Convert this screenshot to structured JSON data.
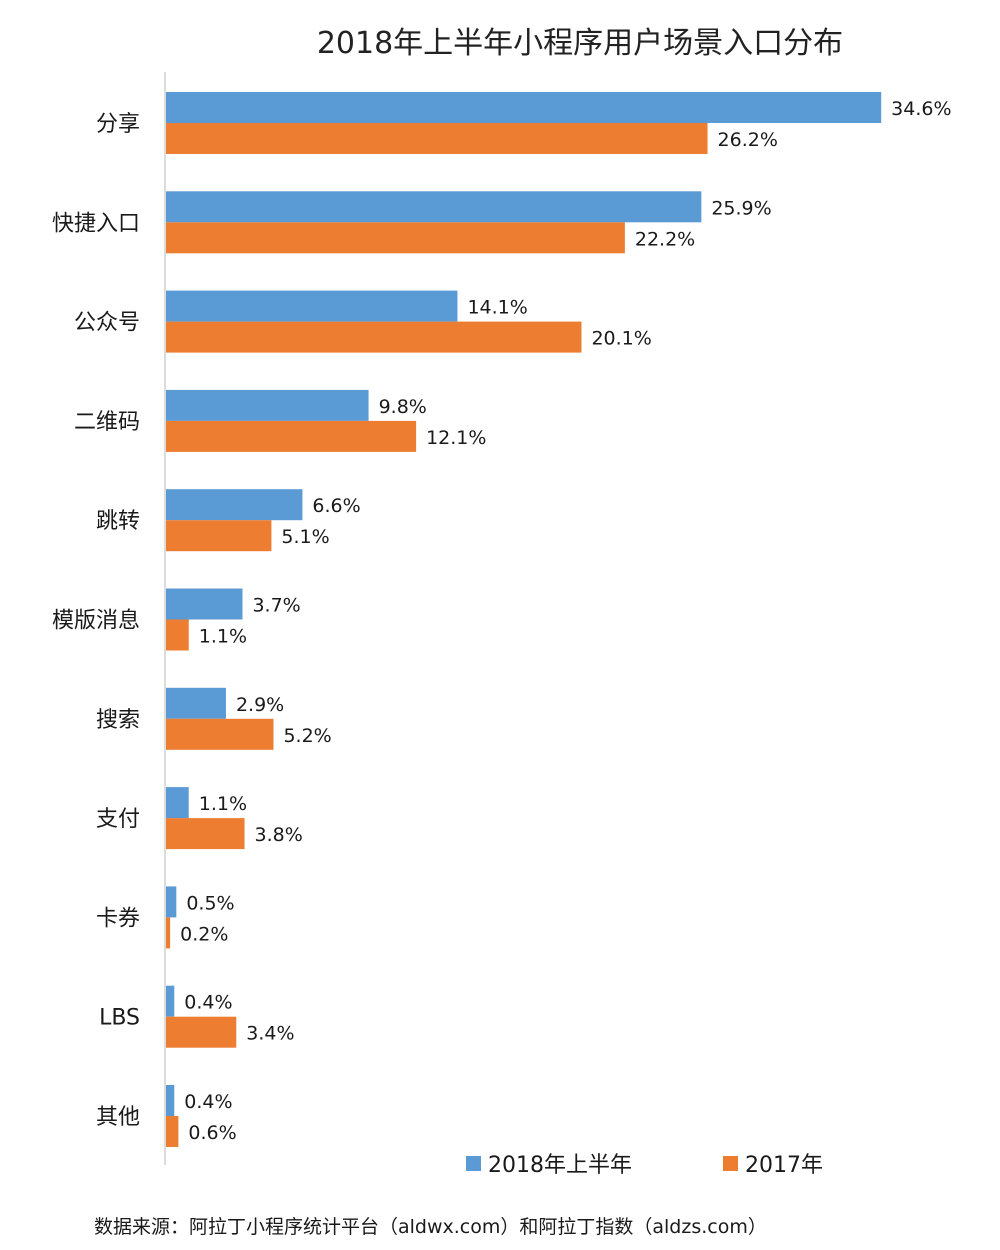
{
  "chart_data": {
    "type": "bar",
    "orientation": "horizontal",
    "title": "2018年上半年小程序用户场景入口分布",
    "categories": [
      "分享",
      "快捷入口",
      "公众号",
      "二维码",
      "跳转",
      "模版消息",
      "搜索",
      "支付",
      "卡券",
      "LBS",
      "其他"
    ],
    "series": [
      {
        "name": "2018年上半年",
        "color": "#5b9bd5",
        "values": [
          34.6,
          25.9,
          14.1,
          9.8,
          6.6,
          3.7,
          2.9,
          1.1,
          0.5,
          0.4,
          0.4
        ],
        "labels": [
          "34.6%",
          "25.9%",
          "14.1%",
          "9.8%",
          "6.6%",
          "3.7%",
          "2.9%",
          "1.1%",
          "0.5%",
          "0.4%",
          "0.4%"
        ]
      },
      {
        "name": "2017年",
        "color": "#ed7d31",
        "values": [
          26.2,
          22.2,
          20.1,
          12.1,
          5.1,
          1.1,
          5.2,
          3.8,
          0.2,
          3.4,
          0.6
        ],
        "labels": [
          "26.2%",
          "22.2%",
          "20.1%",
          "12.1%",
          "5.1%",
          "1.1%",
          "5.2%",
          "3.8%",
          "0.2%",
          "3.4%",
          "0.6%"
        ]
      }
    ],
    "value_unit": "%",
    "xlim": [
      0,
      36
    ],
    "legend_position": "bottom-right",
    "grid": false
  },
  "source_note": "数据来源：阿拉丁小程序统计平台（aldwx.com）和阿拉丁指数（aldzs.com）"
}
